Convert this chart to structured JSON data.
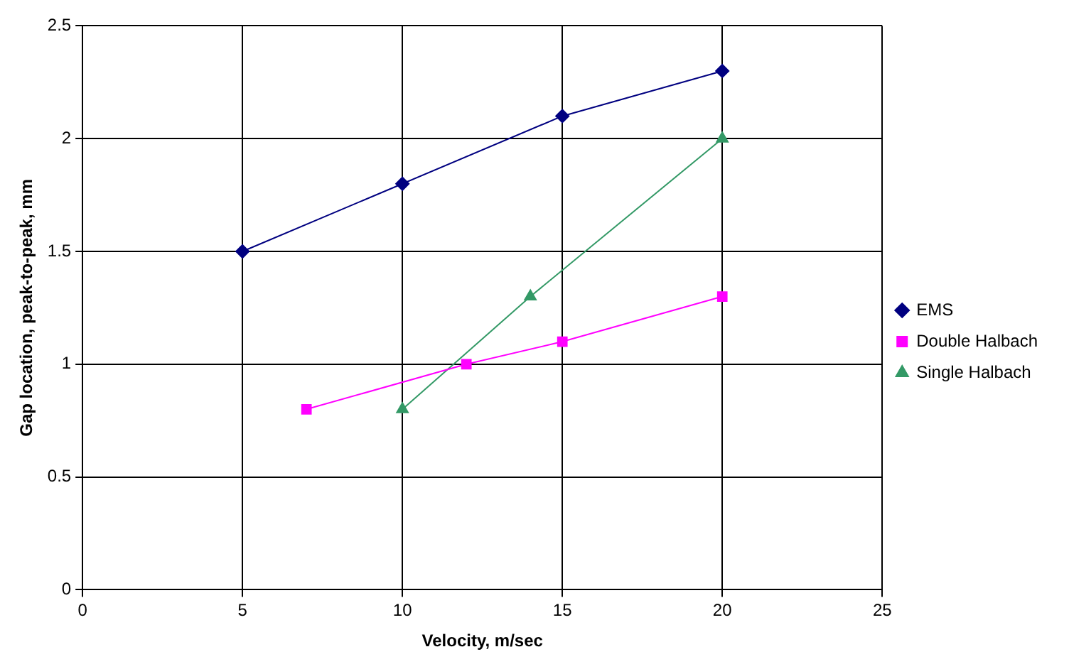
{
  "chart_data": {
    "type": "line",
    "xlabel": "Velocity, m/sec",
    "ylabel": "Gap location, peak-to-peak, mm",
    "xlim": [
      0,
      25
    ],
    "xticks": [
      0,
      5,
      10,
      15,
      20,
      25
    ],
    "ylim": [
      0,
      2.5
    ],
    "yticks": [
      0,
      0.5,
      1,
      1.5,
      2,
      2.5
    ],
    "grid": true,
    "legend": "right",
    "series": [
      {
        "name": "EMS",
        "color": "#000080",
        "marker": "diamond",
        "x": [
          5,
          10,
          15,
          20
        ],
        "values": [
          1.5,
          1.8,
          2.1,
          2.3
        ]
      },
      {
        "name": "Double Halbach",
        "color": "#ff00ff",
        "marker": "square",
        "x": [
          7,
          12,
          15,
          20
        ],
        "values": [
          0.8,
          1.0,
          1.1,
          1.3
        ]
      },
      {
        "name": "Single Halbach",
        "color": "#339966",
        "marker": "triangle",
        "x": [
          10,
          14,
          20
        ],
        "values": [
          0.8,
          1.3,
          2.0
        ]
      }
    ]
  }
}
